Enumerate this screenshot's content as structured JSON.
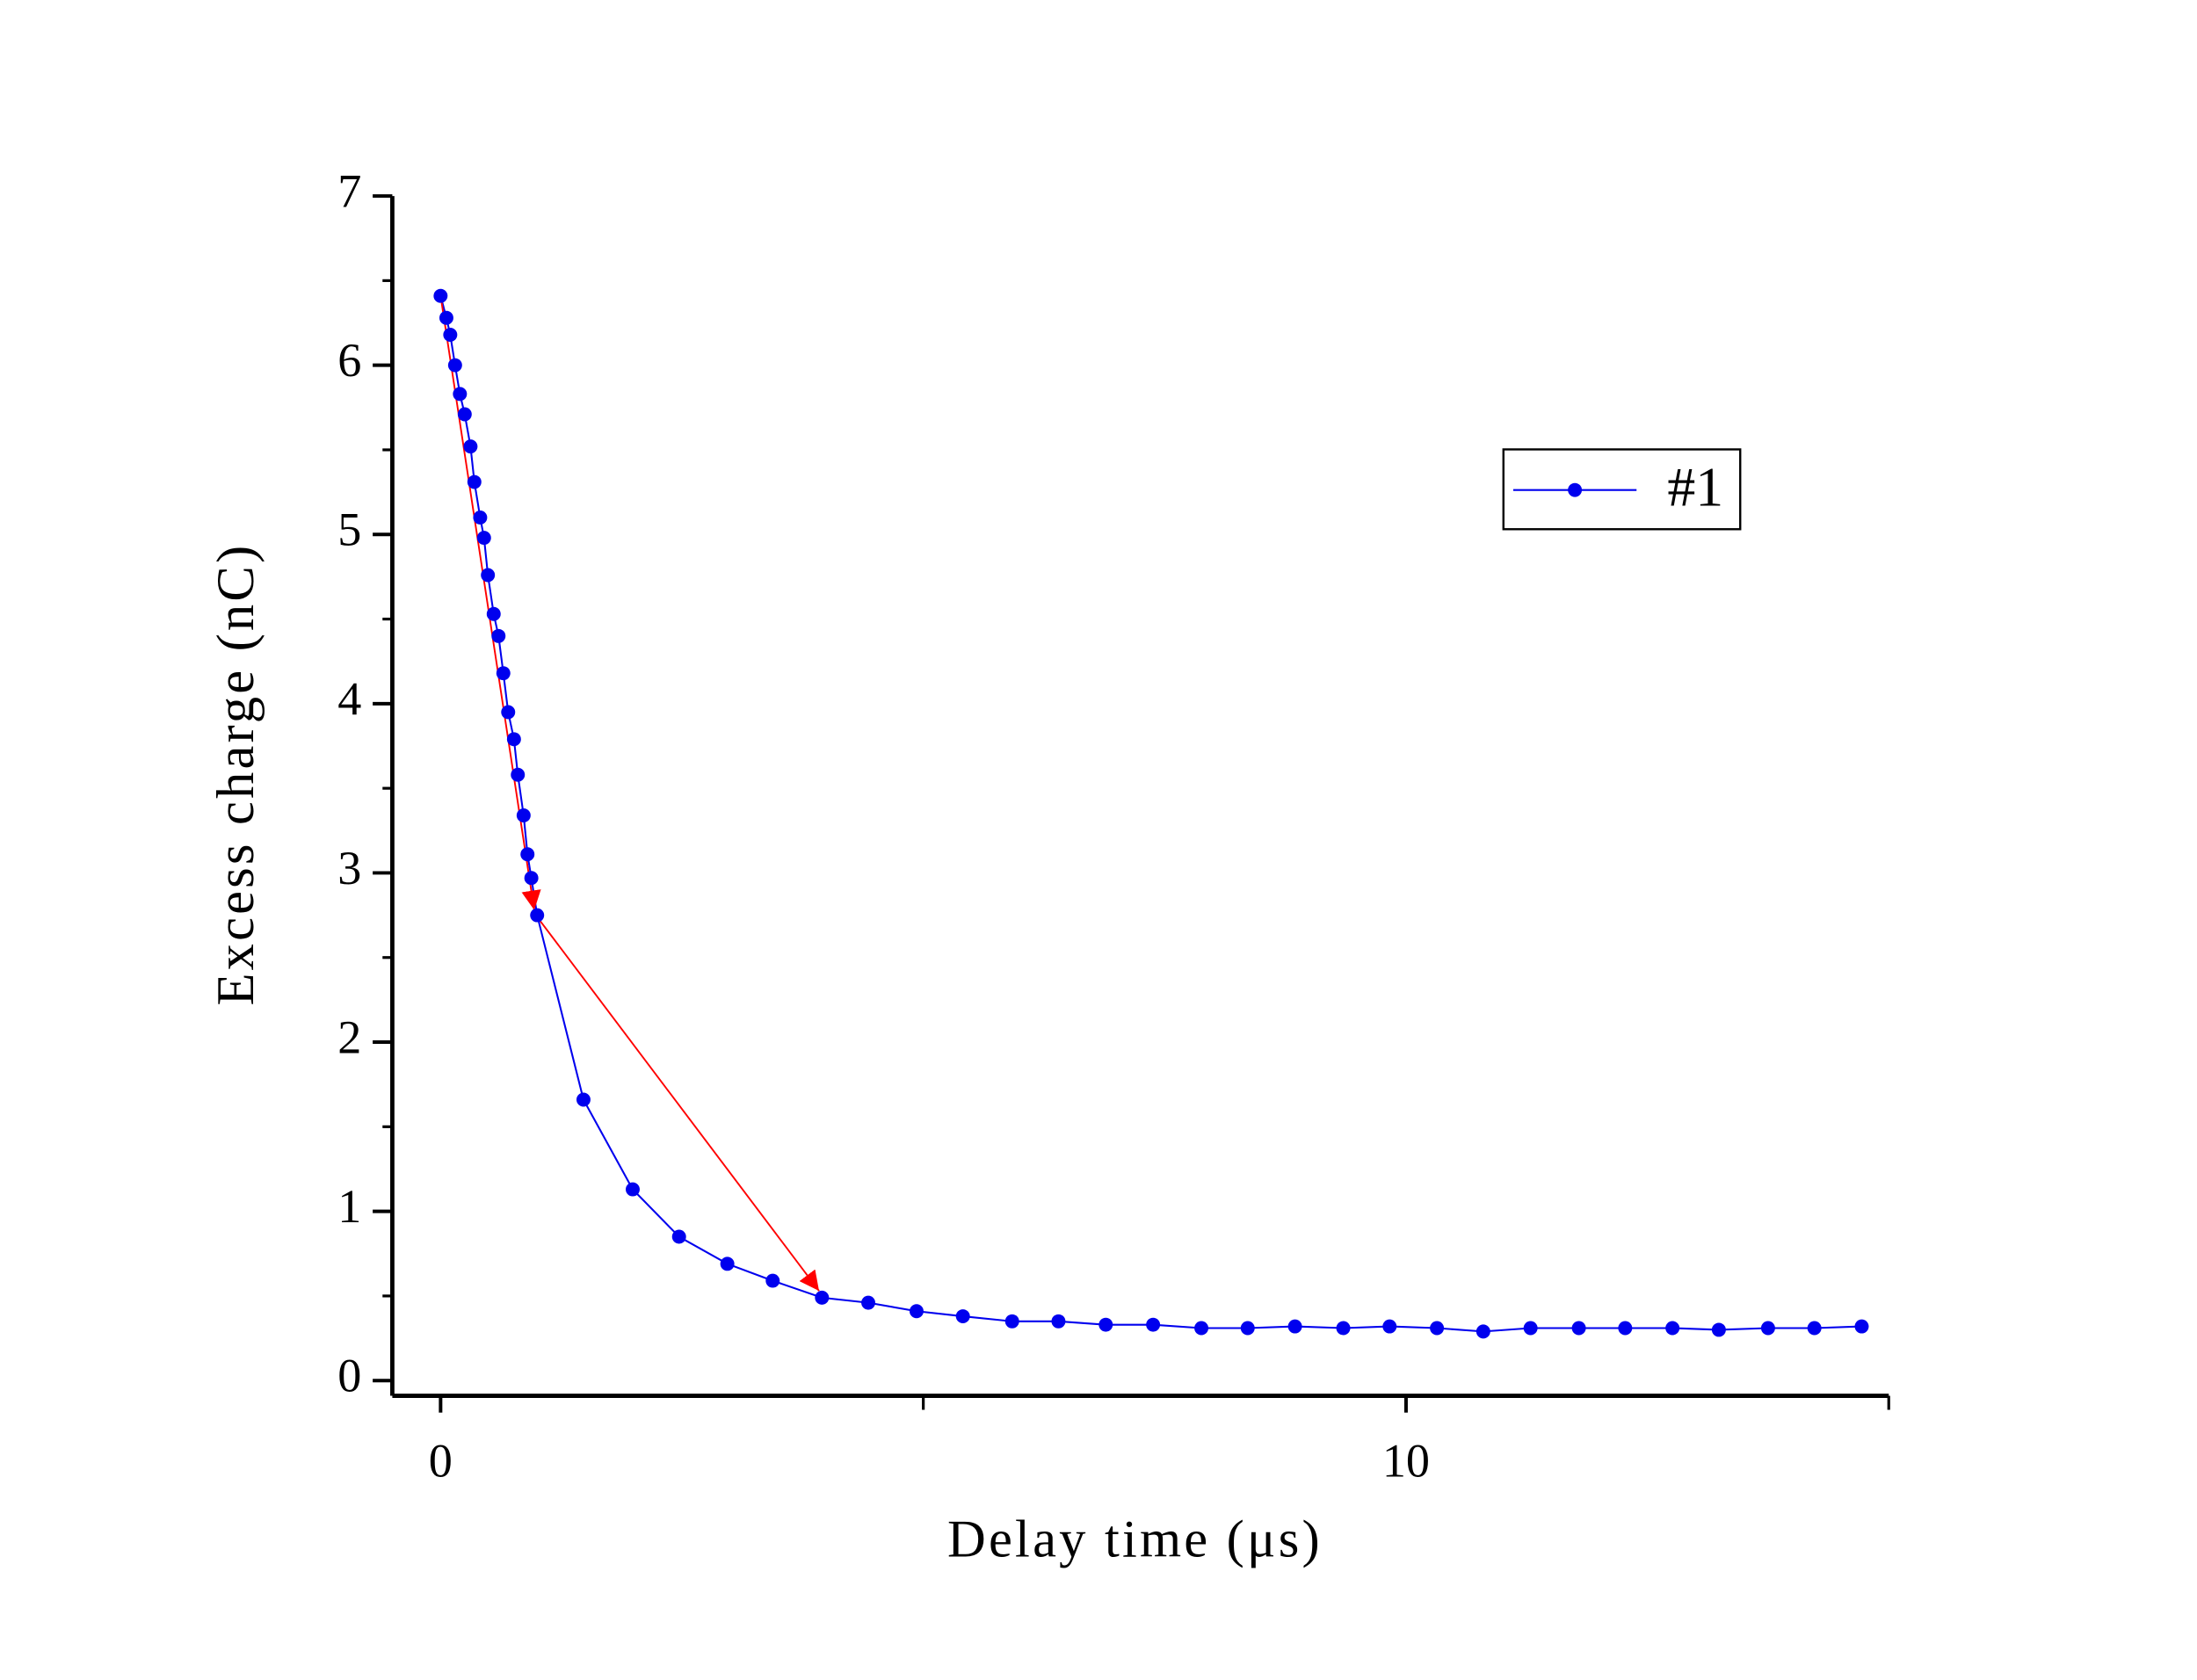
{
  "chart_data": {
    "type": "line",
    "x_label": "Delay time (μs)",
    "y_label": "Excess charge (nC)",
    "xlim": [
      -0.5,
      15
    ],
    "ylim": [
      -0.09,
      7
    ],
    "xticks": [
      0,
      10
    ],
    "xminorticks": [
      5,
      15
    ],
    "yticks": [
      0,
      1,
      2,
      3,
      4,
      5,
      6,
      7
    ],
    "yminorticks": [
      0.5,
      1.5,
      2.5,
      3.5,
      4.5,
      5.5,
      6.5
    ],
    "legend": "upper right",
    "series": [
      {
        "name": "#1",
        "color": "#0000ee",
        "x": [
          0,
          0.06,
          0.1,
          0.15,
          0.2,
          0.25,
          0.31,
          0.35,
          0.41,
          0.45,
          0.49,
          0.55,
          0.6,
          0.65,
          0.7,
          0.76,
          0.8,
          0.86,
          0.9,
          0.94,
          1.0,
          1.48,
          1.99,
          2.47,
          2.97,
          3.44,
          3.95,
          4.43,
          4.93,
          5.41,
          5.92,
          6.4,
          6.89,
          7.38,
          7.88,
          8.36,
          8.85,
          9.35,
          9.83,
          10.32,
          10.8,
          11.29,
          11.79,
          12.27,
          12.76,
          13.24,
          13.75,
          14.23,
          14.72
        ],
        "values": [
          6.41,
          6.28,
          6.18,
          6.0,
          5.83,
          5.71,
          5.52,
          5.31,
          5.1,
          4.98,
          4.76,
          4.53,
          4.4,
          4.18,
          3.95,
          3.79,
          3.58,
          3.34,
          3.11,
          2.97,
          2.75,
          1.66,
          1.13,
          0.85,
          0.69,
          0.59,
          0.49,
          0.46,
          0.41,
          0.38,
          0.35,
          0.35,
          0.33,
          0.33,
          0.31,
          0.31,
          0.32,
          0.31,
          0.32,
          0.31,
          0.29,
          0.31,
          0.31,
          0.31,
          0.31,
          0.3,
          0.31,
          0.31,
          0.32
        ]
      }
    ],
    "arrows": [
      {
        "color": "#ff0000",
        "from": [
          0,
          6.41
        ],
        "to": [
          0.97,
          2.78
        ]
      },
      {
        "color": "#ff0000",
        "from": [
          1.0,
          2.74
        ],
        "to": [
          3.92,
          0.53
        ]
      }
    ]
  }
}
